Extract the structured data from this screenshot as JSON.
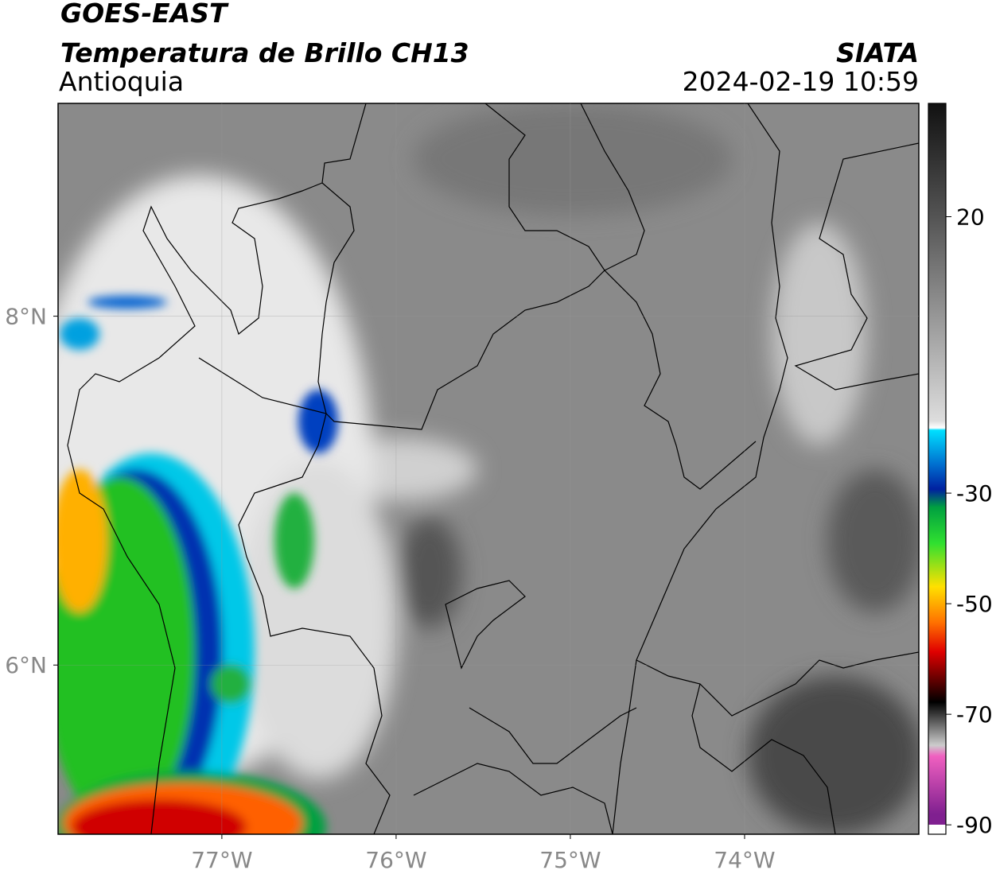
{
  "chart_data": {
    "type": "map",
    "title": "GOES-EAST",
    "subtitle": "Temperatura de Brillo CH13",
    "region": "Antioquia",
    "source": "SIATA",
    "datetime": "2024-02-19 10:59",
    "xlim": [
      -77.94,
      -73.0
    ],
    "ylim": [
      5.03,
      9.22
    ],
    "xticks": [
      {
        "value": -77,
        "label": "77°W"
      },
      {
        "value": -76,
        "label": "76°W"
      },
      {
        "value": -75,
        "label": "75°W"
      },
      {
        "value": -74,
        "label": "74°W"
      }
    ],
    "yticks": [
      {
        "value": 8,
        "label": "8°N"
      },
      {
        "value": 6,
        "label": "6°N"
      }
    ],
    "grid": true,
    "colorbar": {
      "clim": [
        -91.7,
        40.5
      ],
      "ticks": [
        20,
        -30,
        -50,
        -70,
        -90
      ]
    }
  }
}
